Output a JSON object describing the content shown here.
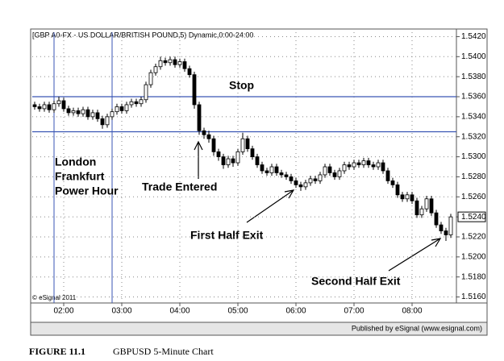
{
  "chart_data": {
    "type": "candlestick",
    "title": "[GBP A0-FX - US DOLLAR/BRITISH POUND,5) Dynamic,0:00-24:00",
    "caption_label": "FIGURE 11.1",
    "caption": "GBPUSD 5-Minute Chart",
    "credit": "© eSignal 2011",
    "footer": "Published by eSignal (www.esignal.com)",
    "annotations": {
      "stop": "Stop",
      "session": [
        "London",
        "Frankfurt",
        "Power Hour"
      ],
      "entry": "Trade Entered",
      "first_exit": "First Half Exit",
      "second_exit": "Second Half Exit"
    },
    "categories": [
      null,
      null,
      null,
      null,
      null,
      null,
      "02:00",
      null,
      null,
      null,
      null,
      null,
      null,
      null,
      null,
      null,
      null,
      null,
      "03:00",
      null,
      null,
      null,
      null,
      null,
      null,
      null,
      null,
      null,
      null,
      null,
      "04:00",
      null,
      null,
      null,
      null,
      null,
      null,
      null,
      null,
      null,
      null,
      null,
      "05:00",
      null,
      null,
      null,
      null,
      null,
      null,
      null,
      null,
      null,
      null,
      null,
      "06:00",
      null,
      null,
      null,
      null,
      null,
      null,
      null,
      null,
      null,
      null,
      null,
      "07:00",
      null,
      null,
      null,
      null,
      null,
      null,
      null,
      null,
      null,
      null,
      null,
      "08:00",
      null,
      null,
      null,
      null,
      null,
      null,
      null,
      null
    ],
    "open": [
      1.5352,
      1.535,
      1.5348,
      1.5352,
      1.5347,
      1.5353,
      1.5356,
      1.5348,
      1.5344,
      1.5346,
      1.5343,
      1.5347,
      1.534,
      1.5344,
      1.5338,
      1.5332,
      1.534,
      1.5345,
      1.535,
      1.5346,
      1.5352,
      1.5355,
      1.5353,
      1.5357,
      1.5372,
      1.5384,
      1.539,
      1.5396,
      1.5394,
      1.5397,
      1.5392,
      1.5395,
      1.5388,
      1.5382,
      1.5352,
      1.5326,
      1.5322,
      1.5318,
      1.5305,
      1.53,
      1.5292,
      1.5298,
      1.5294,
      1.5305,
      1.5318,
      1.5308,
      1.53,
      1.5292,
      1.5286,
      1.5284,
      1.529,
      1.5284,
      1.5282,
      1.528,
      1.5276,
      1.5272,
      1.527,
      1.5274,
      1.5278,
      1.5276,
      1.5282,
      1.529,
      1.5284,
      1.528,
      1.5286,
      1.5292,
      1.529,
      1.5294,
      1.5292,
      1.5296,
      1.5292,
      1.529,
      1.5294,
      1.5286,
      1.5276,
      1.5272,
      1.5262,
      1.5258,
      1.5262,
      1.5256,
      1.5242,
      1.5248,
      1.5258,
      1.5244,
      1.5232,
      1.5226,
      1.5222
    ],
    "high": [
      1.5355,
      1.5353,
      1.5355,
      1.5355,
      1.5356,
      1.536,
      1.5359,
      1.5351,
      1.5349,
      1.5349,
      1.535,
      1.535,
      1.5347,
      1.5347,
      1.5341,
      1.5343,
      1.5348,
      1.5353,
      1.5353,
      1.5355,
      1.5358,
      1.5358,
      1.536,
      1.5375,
      1.5387,
      1.5393,
      1.54,
      1.5399,
      1.54,
      1.54,
      1.5398,
      1.5398,
      1.5391,
      1.5385,
      1.5355,
      1.5329,
      1.5326,
      1.5321,
      1.5308,
      1.5303,
      1.5301,
      1.5301,
      1.5308,
      1.5324,
      1.5321,
      1.5311,
      1.5303,
      1.5295,
      1.5289,
      1.5293,
      1.5293,
      1.5287,
      1.5285,
      1.5283,
      1.5279,
      1.5275,
      1.5277,
      1.5281,
      1.5281,
      1.5285,
      1.5293,
      1.5293,
      1.5287,
      1.5289,
      1.5295,
      1.5295,
      1.5297,
      1.5297,
      1.5299,
      1.5299,
      1.5295,
      1.5297,
      1.5297,
      1.5289,
      1.5279,
      1.5275,
      1.5265,
      1.5265,
      1.5265,
      1.5259,
      1.5251,
      1.5261,
      1.5261,
      1.5247,
      1.5235,
      1.5229,
      1.5243
    ],
    "low": [
      1.5347,
      1.5345,
      1.5345,
      1.5344,
      1.5344,
      1.535,
      1.5345,
      1.5341,
      1.5341,
      1.534,
      1.534,
      1.5337,
      1.5337,
      1.5335,
      1.5328,
      1.5329,
      1.5337,
      1.5342,
      1.5343,
      1.5343,
      1.5349,
      1.535,
      1.535,
      1.5354,
      1.5369,
      1.5381,
      1.5387,
      1.5391,
      1.5391,
      1.5389,
      1.5389,
      1.5385,
      1.5379,
      1.5348,
      1.5322,
      1.5318,
      1.5314,
      1.5301,
      1.5296,
      1.5288,
      1.5289,
      1.529,
      1.5291,
      1.5302,
      1.5305,
      1.5297,
      1.5289,
      1.5283,
      1.5281,
      1.5281,
      1.5281,
      1.5279,
      1.5277,
      1.5273,
      1.5269,
      1.5266,
      1.5267,
      1.5271,
      1.5273,
      1.5273,
      1.5279,
      1.5281,
      1.5277,
      1.5277,
      1.5283,
      1.5287,
      1.5287,
      1.5289,
      1.5289,
      1.5289,
      1.5287,
      1.5287,
      1.5283,
      1.5273,
      1.5269,
      1.5259,
      1.5255,
      1.5255,
      1.5253,
      1.5239,
      1.5239,
      1.5245,
      1.5241,
      1.5229,
      1.5223,
      1.5216,
      1.5219
    ],
    "close": [
      1.535,
      1.5348,
      1.5352,
      1.5347,
      1.5353,
      1.5356,
      1.5348,
      1.5344,
      1.5346,
      1.5343,
      1.5347,
      1.534,
      1.5344,
      1.5338,
      1.5332,
      1.534,
      1.5345,
      1.535,
      1.5346,
      1.5352,
      1.5355,
      1.5353,
      1.5357,
      1.5372,
      1.5384,
      1.539,
      1.5396,
      1.5394,
      1.5397,
      1.5392,
      1.5395,
      1.5388,
      1.5382,
      1.5352,
      1.5326,
      1.5322,
      1.5318,
      1.5305,
      1.53,
      1.5292,
      1.5298,
      1.5294,
      1.5305,
      1.5318,
      1.5308,
      1.53,
      1.5292,
      1.5286,
      1.5284,
      1.529,
      1.5284,
      1.5282,
      1.528,
      1.5276,
      1.5272,
      1.527,
      1.5274,
      1.5278,
      1.5276,
      1.5282,
      1.529,
      1.5284,
      1.528,
      1.5286,
      1.5292,
      1.529,
      1.5294,
      1.5292,
      1.5296,
      1.5292,
      1.529,
      1.5294,
      1.5286,
      1.5276,
      1.5272,
      1.5262,
      1.5258,
      1.5262,
      1.5256,
      1.5242,
      1.5248,
      1.5258,
      1.5244,
      1.5232,
      1.5226,
      1.5222,
      1.524
    ],
    "hlines": [
      1.536,
      1.5325
    ],
    "ylim": [
      1.5154,
      1.5426
    ],
    "yticks": [
      {
        "value": 1.516,
        "label": "1.5160"
      },
      {
        "value": 1.518,
        "label": "1.5180"
      },
      {
        "value": 1.52,
        "label": "1.5200"
      },
      {
        "value": 1.522,
        "label": "1.5220"
      },
      {
        "value": 1.524,
        "label": "1.5240"
      },
      {
        "value": 1.526,
        "label": "1.5260"
      },
      {
        "value": 1.528,
        "label": "1.5280"
      },
      {
        "value": 1.53,
        "label": "1.5300"
      },
      {
        "value": 1.532,
        "label": "1.5320"
      },
      {
        "value": 1.534,
        "label": "1.5340"
      },
      {
        "value": 1.536,
        "label": "1.5360"
      },
      {
        "value": 1.538,
        "label": "1.5380"
      },
      {
        "value": 1.54,
        "label": "1.5400"
      },
      {
        "value": 1.542,
        "label": "1.5420"
      }
    ],
    "grid": true,
    "up_color": "#ffffff",
    "down_color": "#000000",
    "line_color": "#3a56b4"
  }
}
